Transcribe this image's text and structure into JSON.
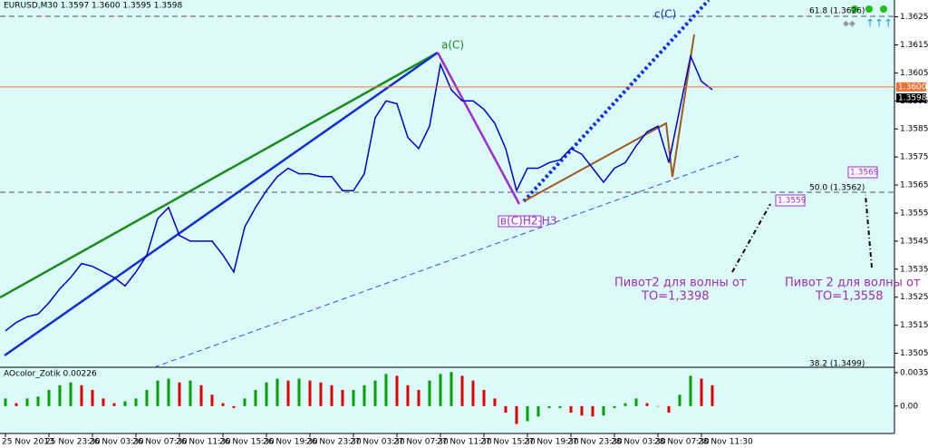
{
  "chart_data": [
    {
      "type": "line",
      "title": "EURUSD,M30  1.3597 1.3600 1.3595 1.3598",
      "categories": [
        "25 Nov 2013",
        null,
        null,
        null,
        "25 Nov 23:30",
        null,
        null,
        null,
        "26 Nov 03:30",
        null,
        null,
        null,
        "26 Nov 07:30",
        null,
        null,
        null,
        "26 Nov 11:30",
        null,
        null,
        null,
        "26 Nov 15:30",
        null,
        null,
        null,
        "26 Nov 19:30",
        null,
        null,
        null,
        "26 Nov 23:30",
        null,
        null,
        null,
        "27 Nov 03:30",
        null,
        null,
        null,
        "27 Nov 07:30",
        null,
        null,
        null,
        "27 Nov 11:30",
        null,
        null,
        null,
        "27 Nov 15:30",
        null,
        null,
        null,
        "27 Nov 19:30",
        null,
        null,
        null,
        "27 Nov 23:30",
        null,
        null,
        null,
        "28 Nov 03:30",
        null,
        null,
        null,
        "28 Nov 07:30",
        null,
        null,
        null,
        "28 Nov 11:30",
        null
      ],
      "values": [
        1.3513,
        1.3516,
        1.3518,
        1.3519,
        1.3523,
        1.3528,
        1.3532,
        1.3537,
        1.3536,
        1.3534,
        1.3532,
        1.3529,
        1.3534,
        1.354,
        1.3553,
        1.3557,
        1.3547,
        1.3545,
        1.3545,
        1.3545,
        1.354,
        1.3534,
        1.355,
        1.3557,
        1.3563,
        1.3568,
        1.3571,
        1.3569,
        1.3569,
        1.3568,
        1.3568,
        1.3563,
        1.3563,
        1.3569,
        1.3589,
        1.3595,
        1.3594,
        1.3582,
        1.3578,
        1.3586,
        1.3608,
        1.3599,
        1.3595,
        1.3595,
        1.3592,
        1.3587,
        1.3578,
        1.3563,
        1.3571,
        1.3571,
        1.3573,
        1.3574,
        1.3578,
        1.3576,
        1.3571,
        1.3566,
        1.3571,
        1.3573,
        1.3579,
        1.3584,
        1.3586,
        1.3573,
        1.3592,
        1.3611,
        1.3602,
        1.3599
      ],
      "color": "#0000cc",
      "ylim": [
        1.35,
        1.3631
      ],
      "yticks": [
        1.3505,
        1.3515,
        1.3525,
        1.3535,
        1.3545,
        1.3555,
        1.3565,
        1.3575,
        1.3585,
        1.3595,
        1.3605,
        1.3615,
        1.3625
      ],
      "price_markers": [
        {
          "value": 1.36,
          "label": "1.3600",
          "color": "#f07030"
        },
        {
          "value": 1.3598,
          "label": "1.3598",
          "color": "#000000"
        }
      ],
      "annotations": [
        "a(C)",
        "c(C)",
        "в(C)Н2-Н3",
        "1.3569",
        "1.3559",
        "61.8 (1.3626)",
        "50.0 (1.3562)",
        "38.2 (1.3499)",
        "Пивот2 для волны от",
        "ТО=1,3398",
        "Пивот 2 для волны от",
        "ТО=1,3558"
      ]
    },
    {
      "type": "bar",
      "title": "AOcolor_Zotik 0.00226",
      "values": [
        0.0008,
        0.0003,
        0.0008,
        0.001,
        0.0017,
        0.0022,
        0.0025,
        0.0022,
        0.0017,
        0.0008,
        0.0003,
        0.0005,
        0.0008,
        0.0017,
        0.0027,
        0.0029,
        0.0025,
        0.0027,
        0.0022,
        0.0012,
        0.0003,
        -0.0002,
        0.0008,
        0.0017,
        0.0025,
        0.0029,
        0.0027,
        0.0029,
        0.0027,
        0.0025,
        0.0022,
        0.0017,
        0.0017,
        0.0022,
        0.0027,
        0.0034,
        0.0032,
        0.0022,
        0.0017,
        0.0027,
        0.0034,
        0.0036,
        0.0032,
        0.0027,
        0.0017,
        0.0008,
        -0.0007,
        -0.0019,
        -0.0016,
        -0.0011,
        -0.0002,
        -0.0002,
        -0.0007,
        -0.001,
        -0.0011,
        -0.001,
        -0.0002,
        0.0003,
        0.0008,
        0.0003,
        0,
        -0.0007,
        0.0012,
        0.0032,
        0.0029,
        0.0022
      ],
      "up_color": "#00a000",
      "down_color": "#e00000",
      "ylim": [
        -0.0029,
        0.0041
      ],
      "yticks": [
        0.00354,
        {
          "value": 0,
          "label": "0.00"
        }
      ]
    }
  ]
}
